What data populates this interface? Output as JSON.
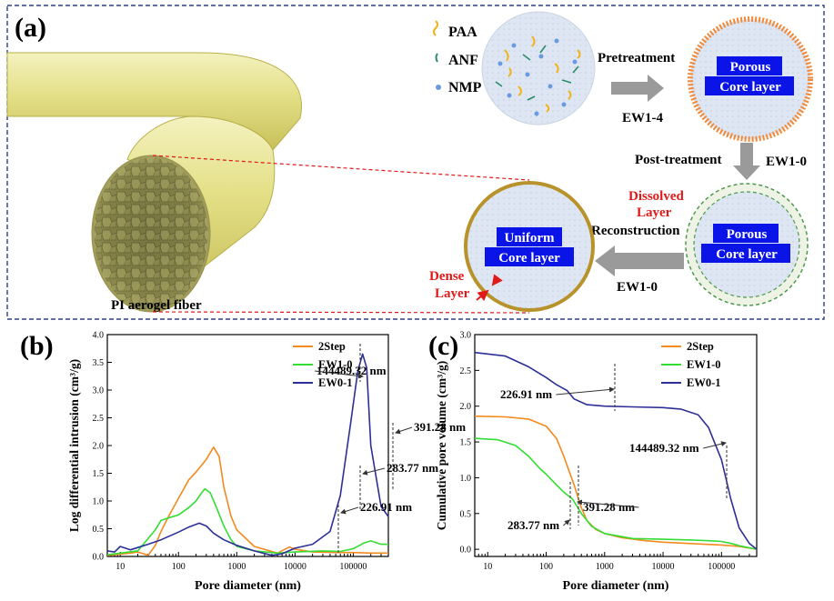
{
  "panel_a": {
    "label": "(a)",
    "legend": {
      "paa": "PAA",
      "anf": "ANF",
      "nmp": "NMP"
    },
    "step_pretreatment": "Pretreatment",
    "step_ew14": "EW1-4",
    "porous_line1": "Porous",
    "porous_line2": "Core layer",
    "step_posttreatment": "Post-treatment",
    "step_ew10_right": "EW1-0",
    "dissolved_line1": "Dissolved",
    "dissolved_line2": "Layer",
    "step_reconstruction": "Reconstruction",
    "step_ew10_bottom": "EW1-0",
    "uniform_line1": "Uniform",
    "uniform_line2": "Core layer",
    "dense_line1": "Dense",
    "dense_line2": "Layer",
    "fiber_label": "PI aerogel fiber",
    "colors": {
      "fiber": "#e6e38a",
      "fiber_dark": "#b5ad45",
      "porous_fill": "#dde6f2",
      "label_box": "#0a14e6",
      "red_label": "#e01919",
      "arrow": "#9a9a9a",
      "dash_border": "#2d3e8c"
    }
  },
  "chart_data": [
    {
      "panel": "(b)",
      "type": "line",
      "xscale": "log",
      "xlim": [
        6,
        400000
      ],
      "ylim": [
        0,
        4.0
      ],
      "xlabel": "Pore diameter (nm)",
      "ylabel": "Log differential intrusion (cm³/g)",
      "xticks": [
        10,
        100,
        1000,
        10000,
        100000
      ],
      "xtick_labels": [
        "10",
        "100",
        "1000",
        "10000",
        "100000"
      ],
      "yticks": [
        0,
        0.5,
        1.0,
        1.5,
        2.0,
        2.5,
        3.0,
        3.5,
        4.0
      ],
      "ytick_labels": [
        "0.0",
        "0.5",
        "1.0",
        "1.5",
        "2.0",
        "2.5",
        "3.0",
        "3.5",
        "4.0"
      ],
      "legend": [
        "2Step",
        "EW1-0",
        "EW0-1"
      ],
      "series": [
        {
          "name": "2Step",
          "color": "#f28a1e",
          "x": [
            6,
            15,
            20,
            25,
            30,
            40,
            50,
            70,
            100,
            150,
            200,
            300,
            400,
            500,
            600,
            800,
            1000,
            2000,
            5000,
            8000,
            10000,
            20000,
            50000,
            100000,
            200000,
            400000
          ],
          "y": [
            0.02,
            0.06,
            0.08,
            0.05,
            0.02,
            0.2,
            0.45,
            0.75,
            1.05,
            1.38,
            1.52,
            1.75,
            1.97,
            1.8,
            1.25,
            0.72,
            0.48,
            0.18,
            0.06,
            0.17,
            0.13,
            0.08,
            0.07,
            0.07,
            0.06,
            0.06
          ]
        },
        {
          "name": "EW1-0",
          "color": "#33dd33",
          "x": [
            6,
            10,
            20,
            40,
            50,
            70,
            100,
            150,
            200,
            250,
            283.77,
            350,
            450,
            600,
            800,
            1000,
            2000,
            5000,
            10000,
            30000,
            60000,
            100000,
            150000,
            200000,
            300000,
            400000
          ],
          "y": [
            0.03,
            0.06,
            0.1,
            0.48,
            0.65,
            0.7,
            0.75,
            0.88,
            1.0,
            1.15,
            1.22,
            1.15,
            0.88,
            0.55,
            0.3,
            0.18,
            0.1,
            0.06,
            0.08,
            0.1,
            0.09,
            0.14,
            0.24,
            0.28,
            0.22,
            0.22
          ]
        },
        {
          "name": "EW0-1",
          "color": "#2c2f96",
          "x": [
            6,
            8,
            10,
            15,
            20,
            30,
            50,
            100,
            150,
            226.91,
            300,
            400,
            600,
            1000,
            2000,
            4000,
            6000,
            10000,
            20000,
            40000,
            60000,
            90000,
            120000,
            144489.32,
            170000,
            200000,
            300000,
            400000
          ],
          "y": [
            0.1,
            0.08,
            0.18,
            0.12,
            0.16,
            0.22,
            0.3,
            0.44,
            0.53,
            0.6,
            0.55,
            0.42,
            0.3,
            0.2,
            0.1,
            0.02,
            0.05,
            0.15,
            0.22,
            0.45,
            1.1,
            2.4,
            3.35,
            3.65,
            3.4,
            2.0,
            0.9,
            0.72
          ]
        }
      ],
      "annotations": [
        {
          "text": "391.28 nm",
          "x": 391.28
        },
        {
          "text": "283.77 nm",
          "x": 283.77
        },
        {
          "text": "226.91 nm",
          "x": 226.91
        },
        {
          "text": "144489.32 nm",
          "x": 144489.32
        }
      ]
    },
    {
      "panel": "(c)",
      "type": "line",
      "xscale": "log",
      "xlim": [
        6,
        400000
      ],
      "ylim": [
        -0.1,
        3.0
      ],
      "xlabel": "Pore diameter (nm)",
      "ylabel": "Cumulative pore volume (cm³/g)",
      "xticks": [
        10,
        100,
        1000,
        10000,
        100000
      ],
      "xtick_labels": [
        "10",
        "100",
        "1000",
        "10000",
        "100000"
      ],
      "yticks": [
        0,
        0.5,
        1.0,
        1.5,
        2.0,
        2.5,
        3.0
      ],
      "ytick_labels": [
        "0.0",
        "0.5",
        "1.0",
        "1.5",
        "2.0",
        "2.5",
        "3.0"
      ],
      "legend": [
        "2Step",
        "EW1-0",
        "EW0-1"
      ],
      "series": [
        {
          "name": "2Step",
          "color": "#f28a1e",
          "x": [
            6,
            20,
            50,
            100,
            150,
            200,
            300,
            391.28,
            500,
            700,
            1000,
            2000,
            5000,
            10000,
            30000,
            100000,
            200000,
            400000
          ],
          "y": [
            1.86,
            1.85,
            1.82,
            1.72,
            1.55,
            1.3,
            0.9,
            0.6,
            0.4,
            0.28,
            0.22,
            0.16,
            0.12,
            0.1,
            0.08,
            0.06,
            0.04,
            0.0
          ]
        },
        {
          "name": "EW1-0",
          "color": "#33dd33",
          "x": [
            6,
            15,
            30,
            50,
            80,
            100,
            150,
            200,
            283.77,
            400,
            600,
            1000,
            3000,
            10000,
            30000,
            60000,
            100000,
            150000,
            200000,
            400000
          ],
          "y": [
            1.55,
            1.53,
            1.45,
            1.3,
            1.12,
            1.05,
            0.9,
            0.8,
            0.7,
            0.5,
            0.32,
            0.22,
            0.15,
            0.14,
            0.13,
            0.12,
            0.11,
            0.08,
            0.05,
            0.0
          ]
        },
        {
          "name": "EW0-1",
          "color": "#2c2f96",
          "x": [
            6,
            20,
            50,
            100,
            150,
            226.91,
            300,
            500,
            1000,
            3000,
            10000,
            20000,
            40000,
            60000,
            100000,
            144489.32,
            200000,
            300000,
            400000
          ],
          "y": [
            2.75,
            2.7,
            2.55,
            2.4,
            2.3,
            2.22,
            2.1,
            2.02,
            2.0,
            1.99,
            1.98,
            1.96,
            1.88,
            1.7,
            1.25,
            0.7,
            0.3,
            0.08,
            0.0
          ]
        }
      ],
      "annotations": [
        {
          "text": "226.91 nm",
          "x": 226.91
        },
        {
          "text": "144489.32 nm",
          "x": 144489.32
        },
        {
          "text": "391.28 nm",
          "x": 391.28
        },
        {
          "text": "283.77 nm",
          "x": 283.77
        }
      ]
    }
  ]
}
